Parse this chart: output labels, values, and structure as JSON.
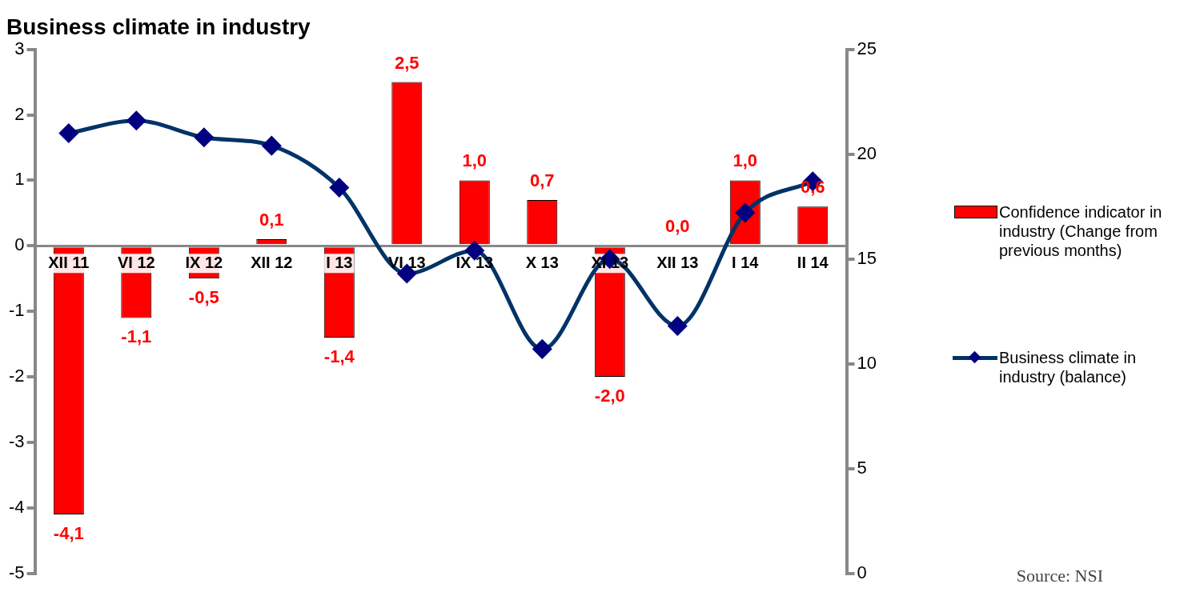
{
  "chart_data": {
    "type": "bar",
    "title": "Business climate in industry",
    "categories": [
      "XII 11",
      "VI 12",
      "IX 12",
      "XII 12",
      "I 13",
      "VI 13",
      "IX 13",
      "X 13",
      "XI 13",
      "XII 13",
      "I 14",
      "II 14"
    ],
    "series": [
      {
        "name": "Confidence indicator in industry  (Change from previous months)",
        "color": "#ff0000",
        "values": [
          -4.1,
          -1.1,
          -0.5,
          0.1,
          -1.4,
          2.5,
          1.0,
          0.7,
          -2.0,
          0.0,
          1.0,
          0.6
        ],
        "value_labels": [
          "-4,1",
          "-1,1",
          "-0,5",
          "0,1",
          "-1,4",
          "2,5",
          "1,0",
          "0,7",
          "-2,0",
          "0,0",
          "1,0",
          "0,6"
        ]
      },
      {
        "name": "Business climate in industry (balance)",
        "type": "line",
        "axis": "y2",
        "color": "#003366",
        "marker": "diamond",
        "values": [
          21.0,
          21.6,
          20.8,
          20.4,
          18.4,
          14.3,
          15.4,
          10.7,
          15.0,
          11.8,
          17.2,
          18.7
        ]
      }
    ],
    "ylim": [
      -5,
      3
    ],
    "yticks": [
      -5,
      -4,
      -3,
      -2,
      -1,
      0,
      1,
      2,
      3
    ],
    "y2lim": [
      0,
      25
    ],
    "y2ticks": [
      0,
      5,
      10,
      15,
      20,
      25
    ],
    "grid": false,
    "legend": "right",
    "annotations": [
      "Source: NSI"
    ]
  }
}
